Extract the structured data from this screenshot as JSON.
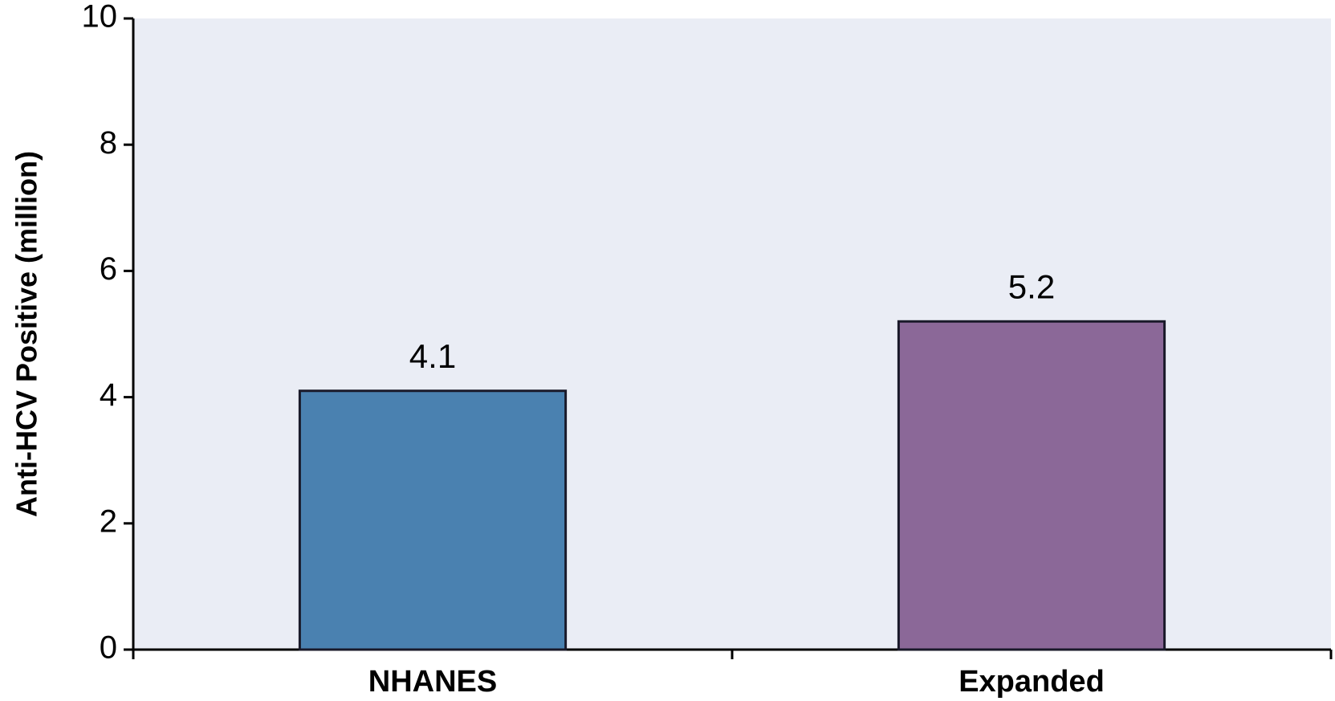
{
  "chart_data": {
    "type": "bar",
    "y_label": "Anti-HCV Positive (million)",
    "categories": [
      "NHANES",
      "Expanded"
    ],
    "values": [
      4.1,
      5.2
    ],
    "colors": [
      "#4a81b0",
      "#8b6898"
    ],
    "ylim": [
      0,
      10
    ],
    "yticks": [
      0,
      2,
      4,
      6,
      8,
      10
    ],
    "grid": false,
    "background": "#eaedf5"
  }
}
